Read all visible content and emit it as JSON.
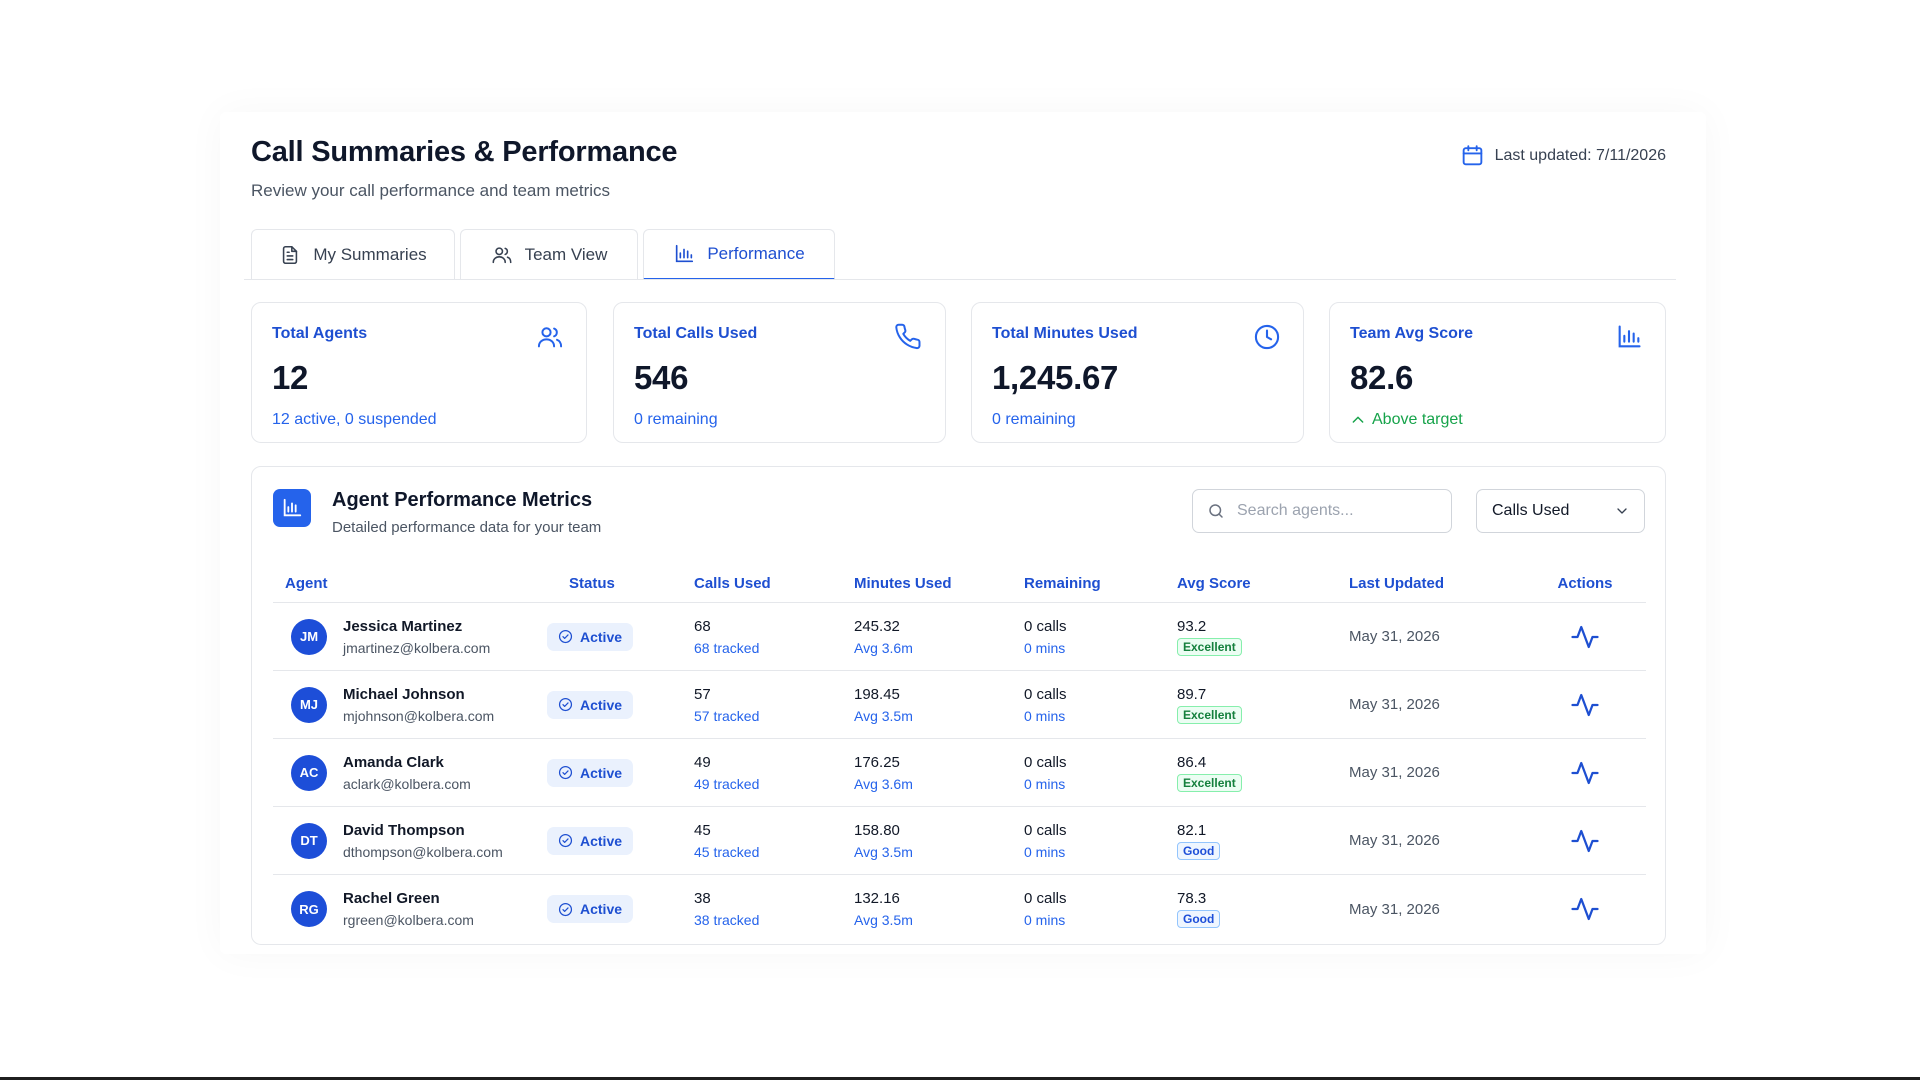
{
  "header": {
    "title": "Call Summaries & Performance",
    "subtitle": "Review your call performance and team metrics",
    "last_updated": "Last updated: 7/11/2026"
  },
  "tabs": [
    {
      "label": "My Summaries",
      "icon": "document-icon",
      "active": false
    },
    {
      "label": "Team View",
      "icon": "users-icon",
      "active": false
    },
    {
      "label": "Performance",
      "icon": "bar-chart-icon",
      "active": true
    }
  ],
  "stats": [
    {
      "label": "Total Agents",
      "value": "12",
      "sub": "12 active, 0 suspended",
      "icon": "users-icon"
    },
    {
      "label": "Total Calls Used",
      "value": "546",
      "sub": "0 remaining",
      "icon": "phone-icon"
    },
    {
      "label": "Total Minutes Used",
      "value": "1,245.67",
      "sub": "0 remaining",
      "icon": "clock-icon"
    },
    {
      "label": "Team Avg Score",
      "value": "82.6",
      "sub": "Above target",
      "icon": "bar-chart-icon"
    }
  ],
  "metrics": {
    "title": "Agent Performance Metrics",
    "description": "Detailed performance data for your team",
    "search_placeholder": "Search agents...",
    "sort_value": "Calls Used"
  },
  "table": {
    "headers": [
      "Agent",
      "Status",
      "Calls Used",
      "Minutes Used",
      "Remaining",
      "Avg Score",
      "Last Updated",
      "Actions"
    ],
    "rows": [
      {
        "initials": "JM",
        "name": "Jessica Martinez",
        "email": "jmartinez@kolbera.com",
        "status": "Active",
        "calls": "68",
        "calls_sub": "68 tracked",
        "minutes": "245.32",
        "minutes_sub": "Avg 3.6m",
        "rem_calls": "0 calls",
        "rem_mins": "0 mins",
        "score": "93.2",
        "badge": "Excellent",
        "updated": "May 31, 2026"
      },
      {
        "initials": "MJ",
        "name": "Michael Johnson",
        "email": "mjohnson@kolbera.com",
        "status": "Active",
        "calls": "57",
        "calls_sub": "57 tracked",
        "minutes": "198.45",
        "minutes_sub": "Avg 3.5m",
        "rem_calls": "0 calls",
        "rem_mins": "0 mins",
        "score": "89.7",
        "badge": "Excellent",
        "updated": "May 31, 2026"
      },
      {
        "initials": "AC",
        "name": "Amanda Clark",
        "email": "aclark@kolbera.com",
        "status": "Active",
        "calls": "49",
        "calls_sub": "49 tracked",
        "minutes": "176.25",
        "minutes_sub": "Avg 3.6m",
        "rem_calls": "0 calls",
        "rem_mins": "0 mins",
        "score": "86.4",
        "badge": "Excellent",
        "updated": "May 31, 2026"
      },
      {
        "initials": "DT",
        "name": "David Thompson",
        "email": "dthompson@kolbera.com",
        "status": "Active",
        "calls": "45",
        "calls_sub": "45 tracked",
        "minutes": "158.80",
        "minutes_sub": "Avg 3.5m",
        "rem_calls": "0 calls",
        "rem_mins": "0 mins",
        "score": "82.1",
        "badge": "Good",
        "updated": "May 31, 2026"
      },
      {
        "initials": "RG",
        "name": "Rachel Green",
        "email": "rgreen@kolbera.com",
        "status": "Active",
        "calls": "38",
        "calls_sub": "38 tracked",
        "minutes": "132.16",
        "minutes_sub": "Avg 3.5m",
        "rem_calls": "0 calls",
        "rem_mins": "0 mins",
        "score": "78.3",
        "badge": "Good",
        "updated": "May 31, 2026"
      }
    ]
  },
  "colors": {
    "accent": "#2563eb",
    "accent_dark": "#1e4fd1",
    "positive": "#16a34a",
    "avatar": "#1d4ed8"
  }
}
